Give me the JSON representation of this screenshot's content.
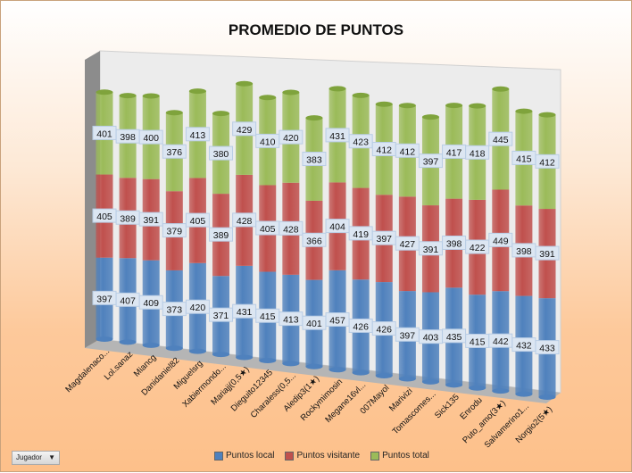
{
  "chart_data": {
    "type": "bar",
    "stacked": true,
    "style": "3d-cylinder",
    "title": "PROMEDIO DE PUNTOS",
    "xlabel": "",
    "ylabel": "",
    "categories": [
      "Magdalenaco...",
      "Lol.sanaz",
      "Miancg",
      "Danidaniel82",
      "Miguelsrg",
      "Xabiermondo...",
      "Mariajj(0,5★)",
      "Dieguito12345",
      "Charaless(0,5...",
      "Aledip3(1★)",
      "Rockymimosin",
      "Megane16vl...",
      "007Mayol",
      "Marivizi",
      "Tomascomes...",
      "Sick135",
      "Enrodu",
      "Puto_amo(3★)",
      "Salvamerino1...",
      "Norgio2(5★)"
    ],
    "series": [
      {
        "name": "Puntos local",
        "color": "#4f81bd",
        "values": [
          397,
          407,
          409,
          373,
          420,
          371,
          431,
          415,
          413,
          401,
          457,
          426,
          426,
          397,
          403,
          435,
          415,
          442,
          432,
          433
        ]
      },
      {
        "name": "Puntos visitante",
        "color": "#c0504d",
        "values": [
          405,
          389,
          391,
          379,
          405,
          389,
          428,
          405,
          428,
          366,
          404,
          419,
          397,
          427,
          391,
          398,
          422,
          449,
          398,
          391
        ]
      },
      {
        "name": "Puntos total",
        "color": "#9bbb59",
        "values": [
          401,
          398,
          400,
          376,
          413,
          380,
          429,
          410,
          420,
          383,
          431,
          423,
          412,
          412,
          397,
          417,
          418,
          445,
          415,
          412
        ]
      }
    ],
    "data_labels": true,
    "legend": "bottom",
    "grid": false
  },
  "filter": {
    "label": "Jugador"
  }
}
